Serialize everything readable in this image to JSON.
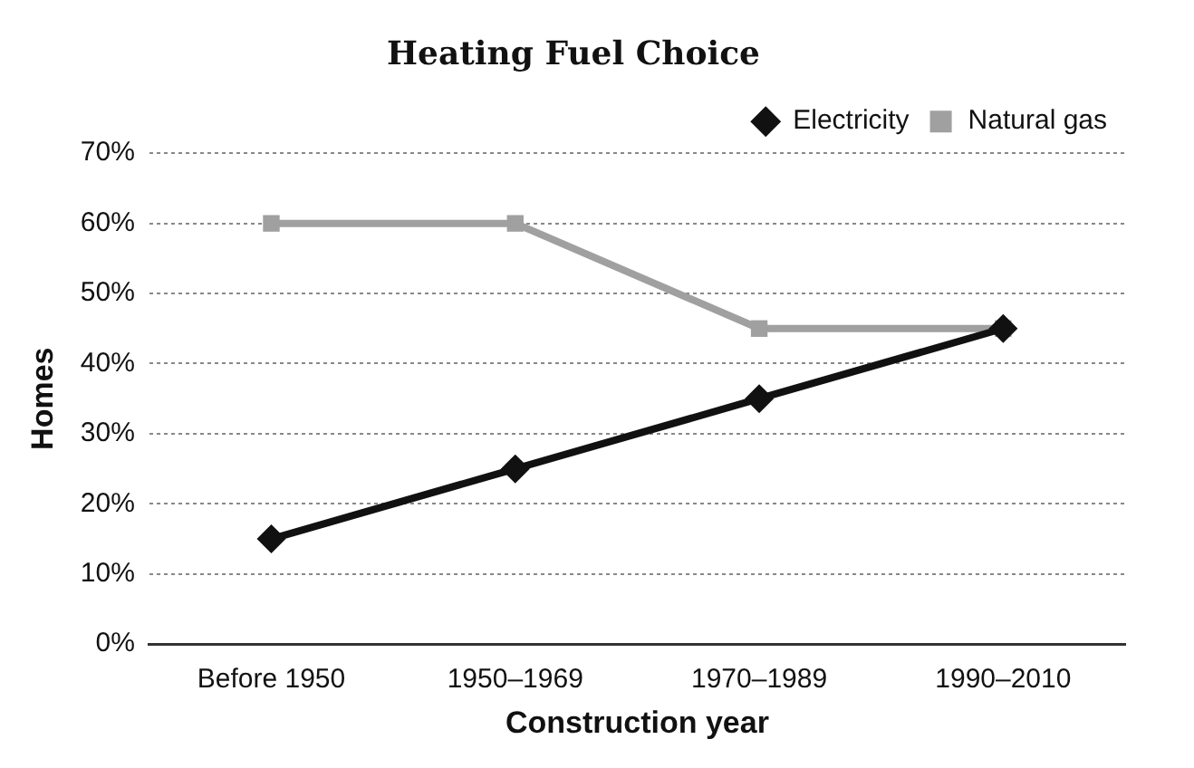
{
  "chart_data": {
    "type": "line",
    "title": "Heating Fuel Choice",
    "xlabel": "Construction year",
    "ylabel": "Homes",
    "categories": [
      "Before 1950",
      "1950–1969",
      "1970–1989",
      "1990–2010"
    ],
    "series": [
      {
        "name": "Electricity",
        "color": "#111111",
        "values": [
          15,
          25,
          35,
          45
        ],
        "marker": "diamond"
      },
      {
        "name": "Natural gas",
        "color": "#a0a0a0",
        "values": [
          60,
          60,
          45,
          45
        ],
        "marker": "square"
      }
    ],
    "ylim": [
      0,
      70
    ],
    "yticks": [
      {
        "value": 0,
        "label": "0%"
      },
      {
        "value": 10,
        "label": "10%"
      },
      {
        "value": 20,
        "label": "20%"
      },
      {
        "value": 30,
        "label": "30%"
      },
      {
        "value": 40,
        "label": "40%"
      },
      {
        "value": 50,
        "label": "50%"
      },
      {
        "value": 60,
        "label": "60%"
      },
      {
        "value": 70,
        "label": "70%"
      }
    ],
    "grid": "y",
    "legend": "top right",
    "line_style": "solid"
  }
}
